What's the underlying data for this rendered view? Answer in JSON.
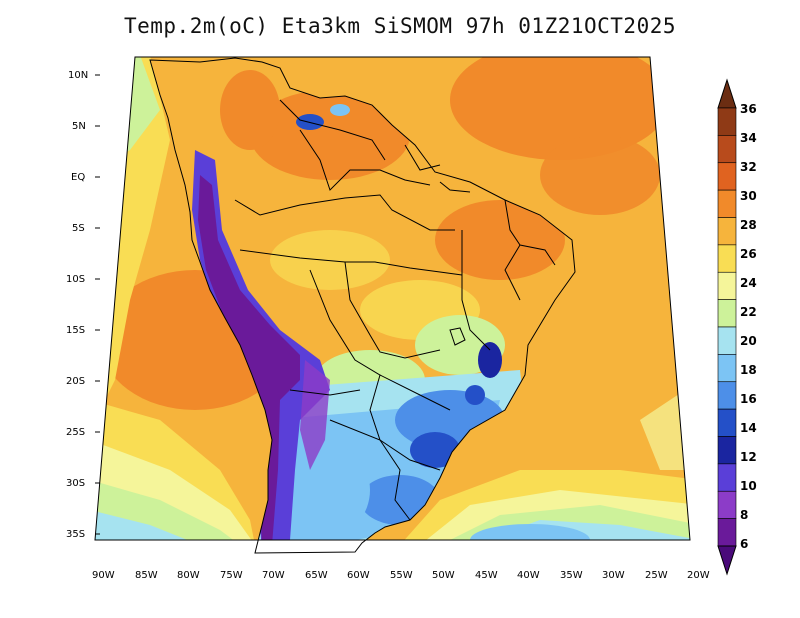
{
  "title": "Temp.2m(oC) Eta3km SiSMOM 97h 01Z21OCT2025",
  "map": {
    "lat_labels": [
      "10N",
      "5N",
      "EQ",
      "5S",
      "10S",
      "15S",
      "20S",
      "25S",
      "30S",
      "35S"
    ],
    "lon_labels": [
      "90W",
      "85W",
      "80W",
      "75W",
      "70W",
      "65W",
      "60W",
      "55W",
      "50W",
      "45W",
      "40W",
      "35W",
      "30W",
      "25W",
      "20W"
    ]
  },
  "colorbar": {
    "labels": [
      "36",
      "34",
      "32",
      "30",
      "28",
      "26",
      "24",
      "22",
      "20",
      "18",
      "16",
      "14",
      "12",
      "10",
      "8",
      "6"
    ],
    "colors": [
      "#6b2d12",
      "#8f3a16",
      "#b84b1c",
      "#e06320",
      "#f18a2a",
      "#f6b43c",
      "#f9dd54",
      "#f5f59a",
      "#cdf29a",
      "#a6e3f0",
      "#7cc4f4",
      "#4d8fe8",
      "#2450c8",
      "#1a25a0",
      "#5a3fd8",
      "#8c3cc8",
      "#6a1a9a",
      "#4a0a7a"
    ]
  }
}
